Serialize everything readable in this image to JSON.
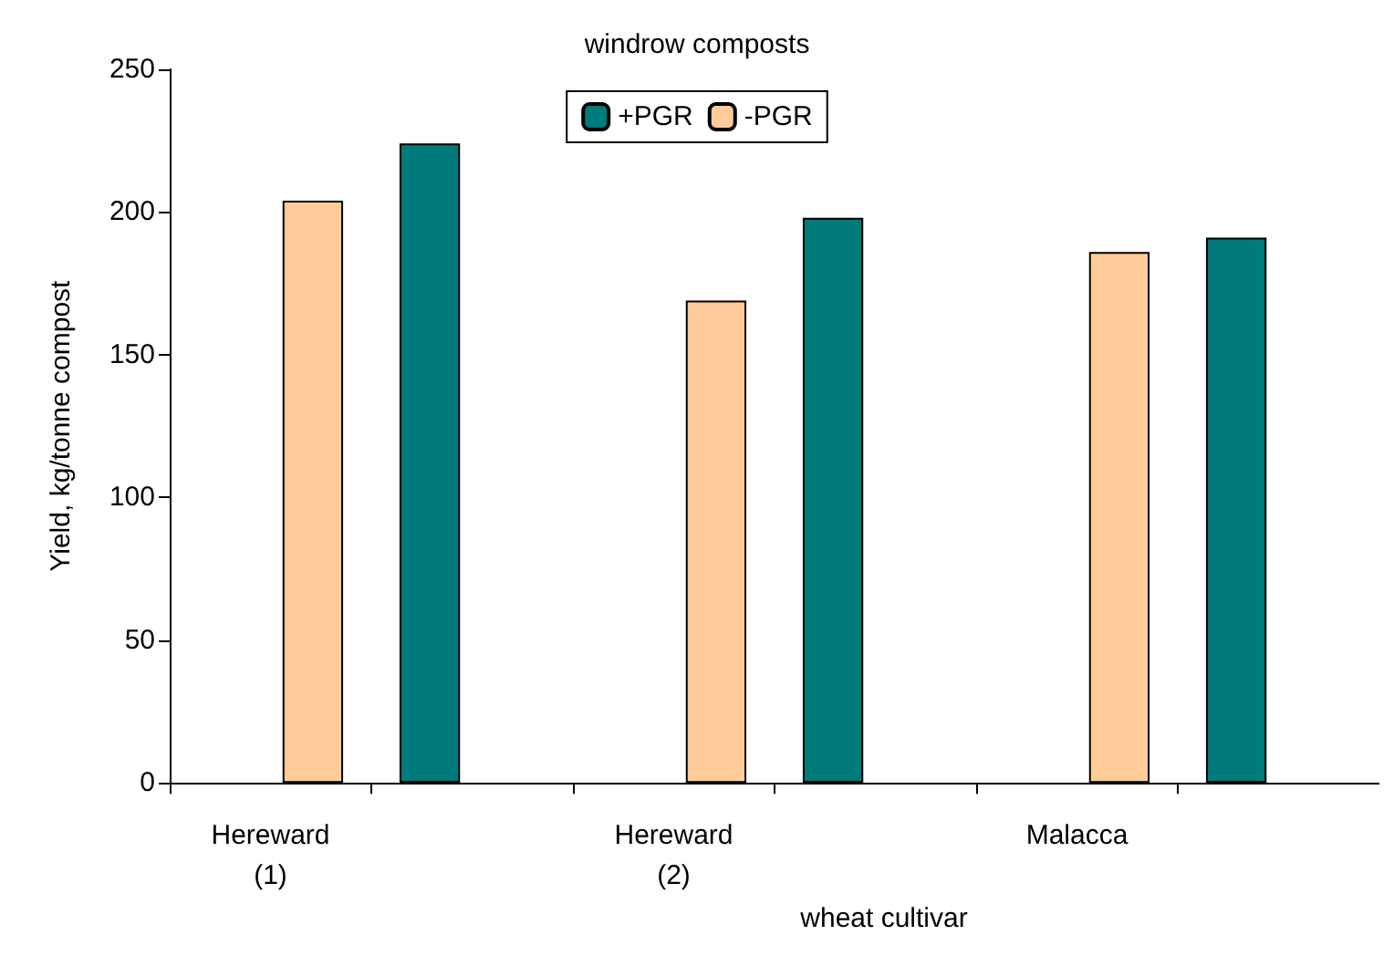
{
  "chart_data": {
    "type": "bar",
    "title": "windrow composts",
    "xlabel": "wheat cultivar",
    "ylabel": "Yield, kg/tonne compost",
    "categories": [
      "Hereward\n(1)",
      null,
      "Hereward\n(2)",
      null,
      "Malacca",
      null
    ],
    "series": [
      {
        "name": "+PGR",
        "color": "#007b7b",
        "values": [
          null,
          224,
          null,
          198,
          null,
          191
        ]
      },
      {
        "name": "-PGR",
        "color": "#ffcc99",
        "values": [
          204,
          null,
          169,
          null,
          186,
          null
        ]
      }
    ],
    "ylim": [
      0,
      250
    ],
    "yticks": [
      0,
      50,
      100,
      150,
      200,
      250
    ],
    "grid": false,
    "legend": "top"
  }
}
